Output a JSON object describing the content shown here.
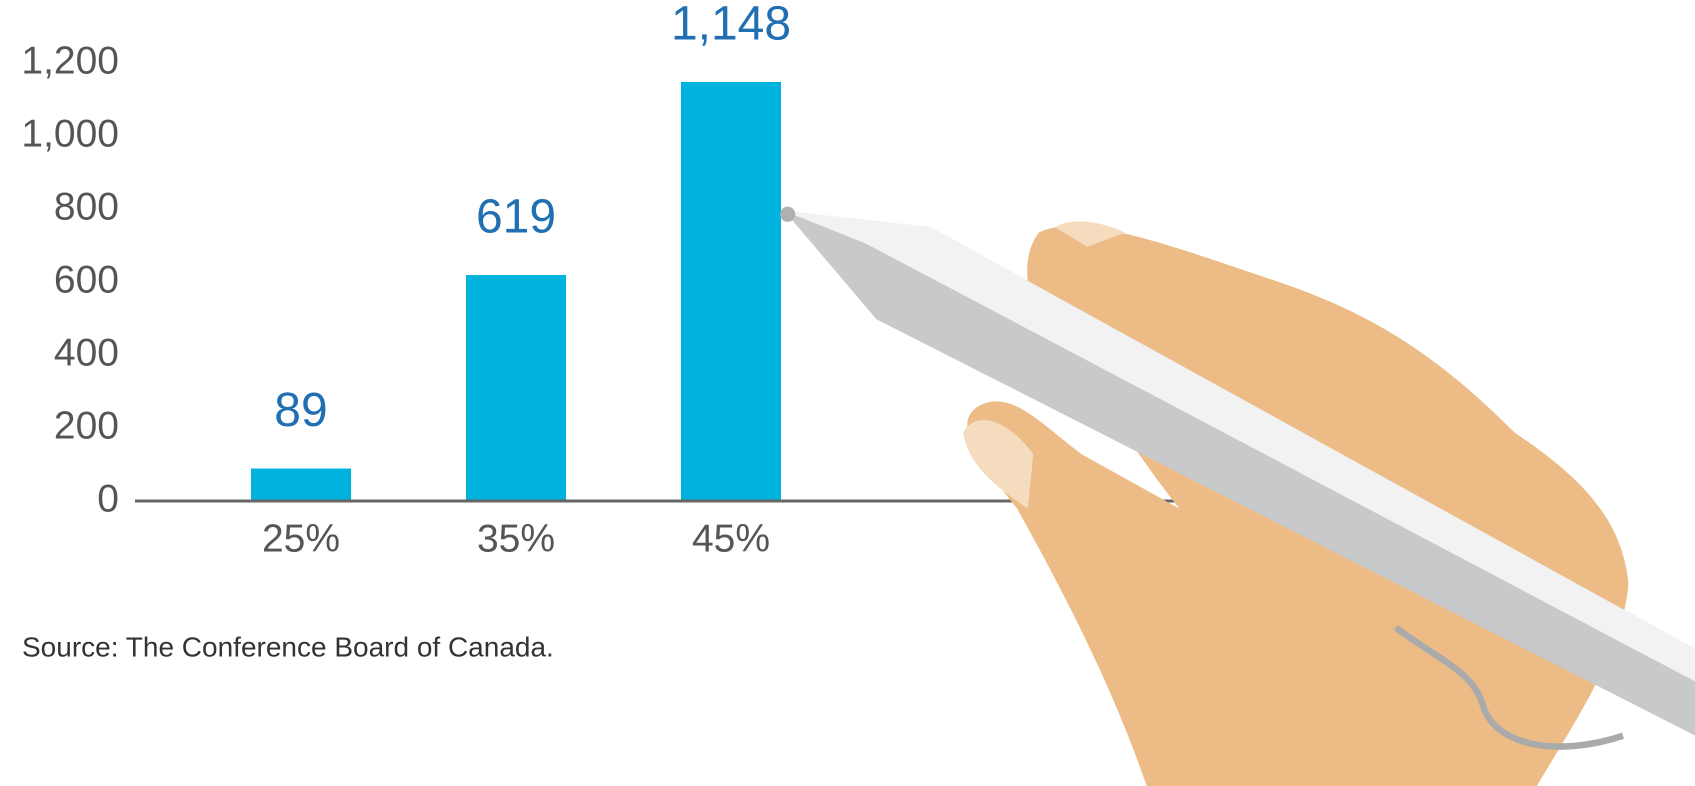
{
  "chart_data": {
    "type": "bar",
    "categories": [
      "25%",
      "35%",
      "45%"
    ],
    "values": [
      89,
      619,
      1148
    ],
    "value_labels": [
      "89",
      "619",
      "1,148"
    ],
    "color": "#00b3de",
    "ylim": [
      0,
      1200
    ],
    "yticks": [
      0,
      200,
      400,
      600,
      800,
      {
        "value": 1000,
        "label": "1,000"
      },
      {
        "value": 1200,
        "label": "1,200"
      }
    ],
    "source": "Source: The Conference Board of Canada."
  }
}
